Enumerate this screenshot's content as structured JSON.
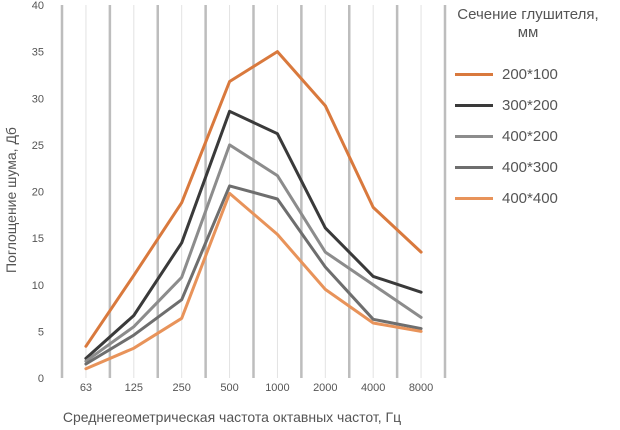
{
  "chart_data": {
    "type": "line",
    "title": "",
    "xlabel": "Среднегеометрическая частота октавных частот, Гц",
    "ylabel": "Поглощение шума, Дб",
    "categories": [
      "63",
      "125",
      "250",
      "500",
      "1000",
      "2000",
      "4000",
      "8000"
    ],
    "ylim": [
      0,
      40
    ],
    "yticks": [
      "0",
      "5",
      "10",
      "15",
      "20",
      "25",
      "30",
      "35",
      "40"
    ],
    "grid": "vertical",
    "legend_title_lines": [
      "Сечение глушителя,",
      "мм"
    ],
    "legend_position": "right",
    "series": [
      {
        "name": "200*100",
        "color": "#d9793d",
        "values": [
          3.4,
          11.0,
          18.8,
          31.8,
          35.0,
          29.2,
          18.3,
          13.5
        ]
      },
      {
        "name": "300*200",
        "color": "#3a3a3a",
        "values": [
          2.1,
          6.7,
          14.5,
          28.6,
          26.2,
          16.1,
          10.9,
          9.2
        ]
      },
      {
        "name": "400*200",
        "color": "#8c8c8c",
        "values": [
          1.8,
          5.5,
          10.8,
          25.0,
          21.7,
          13.5,
          10.0,
          6.5
        ]
      },
      {
        "name": "400*300",
        "color": "#6e6e6e",
        "values": [
          1.5,
          4.6,
          8.4,
          20.6,
          19.2,
          11.9,
          6.3,
          5.3
        ]
      },
      {
        "name": "400*400",
        "color": "#e8935a",
        "values": [
          1.0,
          3.2,
          6.4,
          19.8,
          15.4,
          9.5,
          5.9,
          5.0
        ]
      }
    ]
  }
}
